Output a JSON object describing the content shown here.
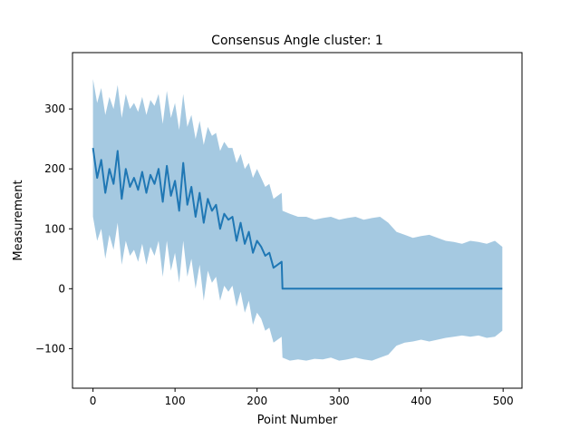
{
  "chart_data": {
    "type": "line",
    "title": "Consensus Angle cluster: 1",
    "xlabel": "Point Number",
    "ylabel": "Measurement",
    "xlim": [
      -25,
      523
    ],
    "ylim": [
      -166,
      394
    ],
    "xticks": [
      0,
      100,
      200,
      300,
      400,
      500
    ],
    "yticks": [
      -100,
      0,
      100,
      200,
      300
    ],
    "grid": false,
    "legend": "none",
    "line_color": "#1f77b4",
    "band_color": "#1f77b4",
    "band_opacity": 0.4,
    "series": [
      {
        "x": [
          0,
          5,
          10,
          15,
          20,
          25,
          30,
          35,
          40,
          45,
          50,
          55,
          60,
          65,
          70,
          75,
          80,
          85,
          90,
          95,
          100,
          105,
          110,
          115,
          120,
          125,
          130,
          135,
          140,
          145,
          150,
          155,
          160,
          165,
          170,
          175,
          180,
          185,
          190,
          195,
          200,
          205,
          210,
          215,
          220,
          225,
          230,
          231,
          240,
          250,
          260,
          270,
          280,
          290,
          300,
          310,
          320,
          330,
          340,
          350,
          360,
          370,
          380,
          390,
          400,
          410,
          420,
          430,
          440,
          450,
          460,
          470,
          480,
          490,
          499
        ],
        "y": [
          235,
          185,
          215,
          160,
          200,
          175,
          230,
          150,
          200,
          170,
          185,
          165,
          195,
          160,
          190,
          175,
          200,
          145,
          205,
          155,
          180,
          130,
          210,
          140,
          170,
          120,
          160,
          110,
          150,
          130,
          140,
          100,
          125,
          115,
          120,
          80,
          110,
          75,
          95,
          60,
          80,
          70,
          55,
          60,
          35,
          40,
          45,
          0,
          0,
          0,
          0,
          0,
          0,
          0,
          0,
          0,
          0,
          0,
          0,
          0,
          0,
          0,
          0,
          0,
          0,
          0,
          0,
          0,
          0,
          0,
          0,
          0,
          0,
          0,
          0
        ],
        "upper": [
          350,
          310,
          335,
          290,
          320,
          300,
          340,
          285,
          325,
          300,
          310,
          295,
          320,
          290,
          315,
          305,
          325,
          275,
          330,
          285,
          310,
          265,
          325,
          270,
          290,
          250,
          280,
          240,
          270,
          255,
          260,
          230,
          245,
          235,
          235,
          210,
          225,
          200,
          210,
          185,
          200,
          185,
          170,
          175,
          150,
          155,
          160,
          130,
          125,
          120,
          120,
          115,
          118,
          120,
          115,
          118,
          120,
          115,
          118,
          120,
          110,
          95,
          90,
          85,
          88,
          90,
          85,
          80,
          78,
          75,
          80,
          78,
          75,
          80,
          70
        ],
        "lower": [
          120,
          80,
          100,
          50,
          90,
          65,
          110,
          40,
          80,
          55,
          65,
          45,
          75,
          40,
          70,
          55,
          80,
          20,
          80,
          30,
          60,
          10,
          80,
          20,
          50,
          0,
          40,
          -20,
          30,
          10,
          20,
          -20,
          5,
          -5,
          5,
          -30,
          -5,
          -40,
          -20,
          -60,
          -40,
          -50,
          -70,
          -65,
          -90,
          -85,
          -80,
          -115,
          -120,
          -118,
          -120,
          -117,
          -118,
          -115,
          -120,
          -118,
          -115,
          -118,
          -120,
          -115,
          -110,
          -95,
          -90,
          -88,
          -85,
          -88,
          -85,
          -82,
          -80,
          -78,
          -80,
          -78,
          -82,
          -80,
          -70
        ]
      }
    ]
  }
}
